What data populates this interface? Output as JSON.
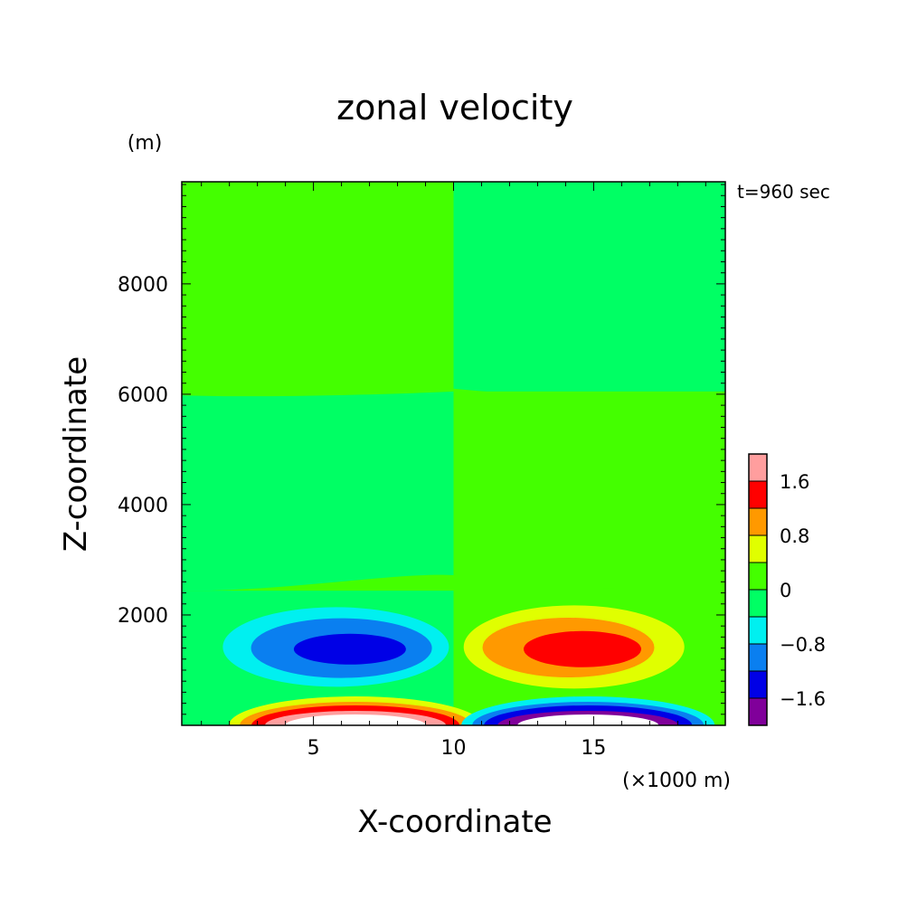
{
  "chart_data": {
    "type": "heatmap",
    "title": "zonal velocity",
    "time_label": "t=960 sec",
    "xlabel": "X-coordinate",
    "x_unit": "(×1000 m)",
    "ylabel": "Z-coordinate",
    "y_unit": "(m)",
    "xlim": [
      0.3,
      19.7
    ],
    "ylim": [
      0,
      9850
    ],
    "x_ticks": [
      5,
      10,
      15
    ],
    "y_ticks": [
      2000,
      4000,
      6000,
      8000
    ],
    "x_tick_labels": [
      "5",
      "10",
      "15"
    ],
    "y_tick_labels": [
      "2000",
      "4000",
      "6000",
      "8000"
    ],
    "colorbar": {
      "levels": [
        -2.0,
        -1.6,
        -1.2,
        -0.8,
        -0.4,
        0,
        0.4,
        0.8,
        1.2,
        1.6,
        2.0
      ],
      "colors": [
        "#80009a",
        "#0000e6",
        "#0a7ff0",
        "#00f0f0",
        "#00ff64",
        "#44ff00",
        "#e0ff00",
        "#ff9900",
        "#ff0000",
        "#ff9e9e"
      ],
      "tick_values": [
        1.6,
        0.8,
        0,
        -0.8,
        -1.6
      ],
      "tick_labels": [
        "1.6",
        "0.8",
        "0",
        "−0.8",
        "−1.6"
      ]
    },
    "regions": [
      {
        "name": "upper-left",
        "x": [
          0.3,
          10
        ],
        "z": [
          6000,
          9850
        ],
        "level": "0 to 0.4",
        "color": "#44ff00"
      },
      {
        "name": "upper-right",
        "x": [
          10,
          19.7
        ],
        "z": [
          6000,
          9850
        ],
        "level": "-0.4 to 0",
        "color": "#00ff64"
      },
      {
        "name": "middle-left",
        "x": [
          0.3,
          10
        ],
        "z": [
          2500,
          6000
        ],
        "level": "-0.4 to 0",
        "color": "#00ff64"
      },
      {
        "name": "middle-right",
        "x": [
          10,
          19.7
        ],
        "z": [
          2500,
          6000
        ],
        "level": "0 to 0.4",
        "color": "#44ff00"
      },
      {
        "name": "low-left-negative-cell",
        "center": [
          6.3,
          1350
        ],
        "min_level": "-1.6 to -1.2",
        "color": "#0000e6"
      },
      {
        "name": "low-right-positive-cell",
        "center": [
          14.5,
          1350
        ],
        "max_level": "1.2 to 1.6",
        "color": "#ff0000"
      },
      {
        "name": "surface-left-positive-cell",
        "center": [
          6.5,
          0
        ],
        "max_level": ">2.0"
      },
      {
        "name": "surface-right-negative-cell",
        "center": [
          14.8,
          0
        ],
        "min_level": "<-2.0"
      }
    ]
  }
}
